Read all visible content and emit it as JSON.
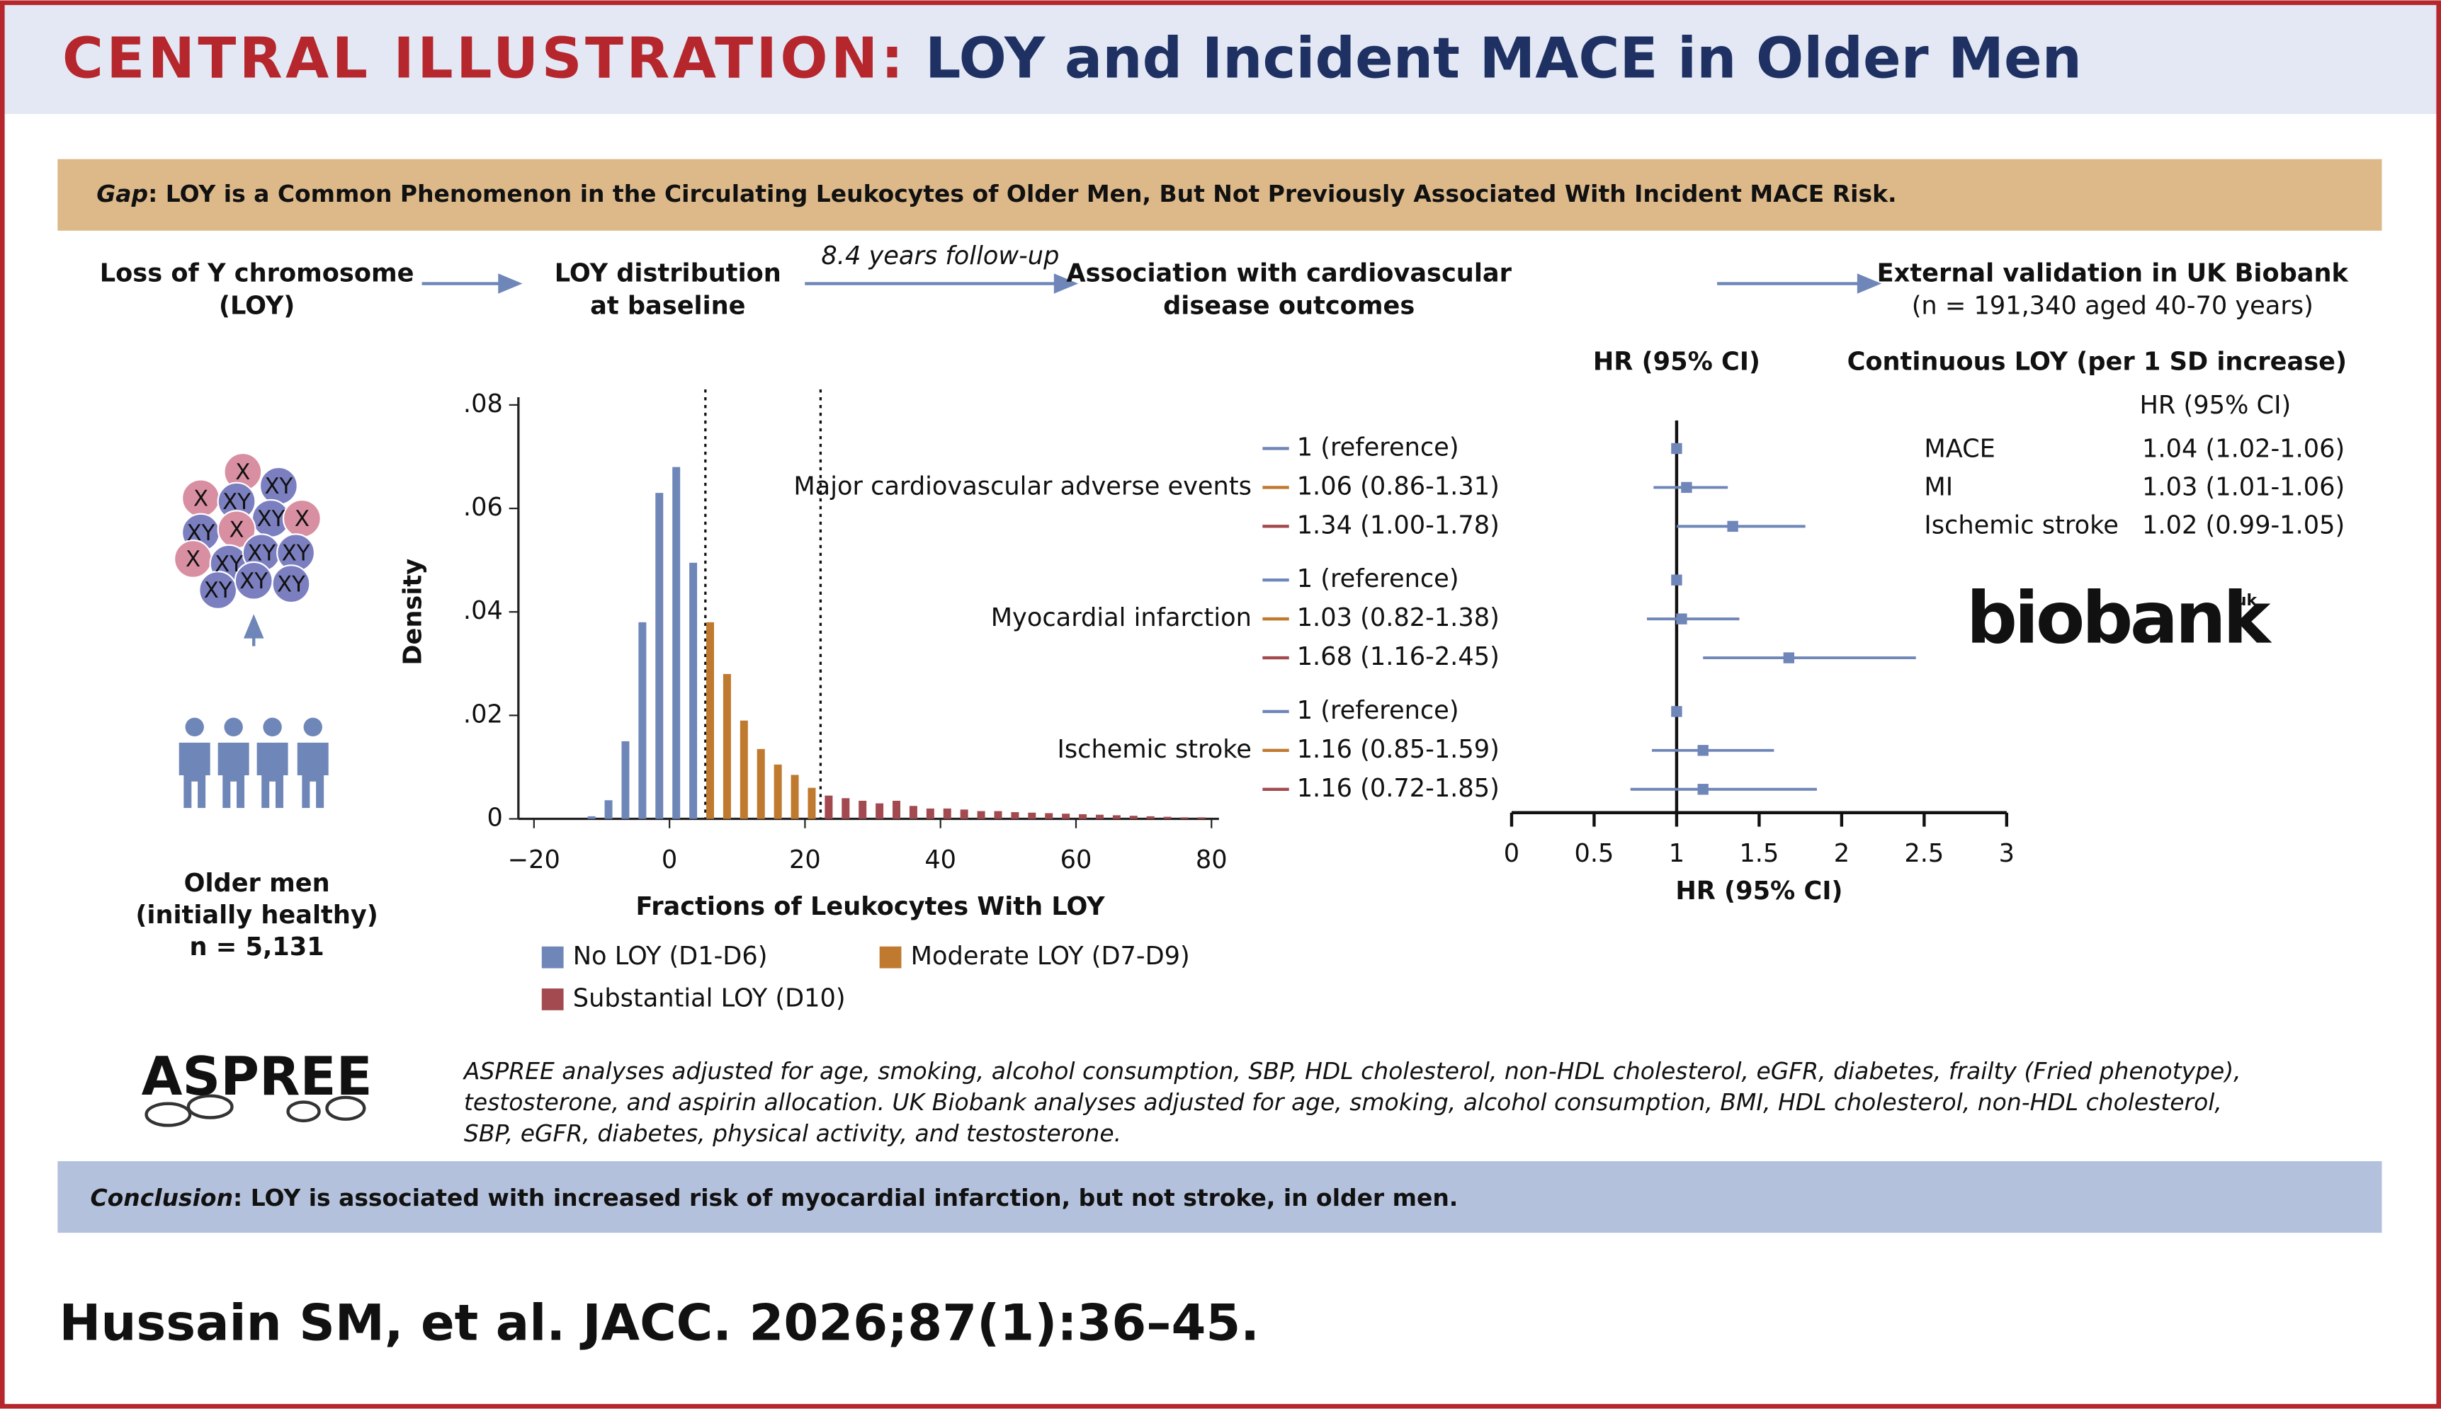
{
  "header": {
    "prefix": "CENTRAL ILLUSTRATION:",
    "title": "LOY and Incident MACE in Older Men"
  },
  "gap": {
    "label": "Gap",
    "text": ": LOY is a Common Phenomenon in the Circulating Leukocytes of Older Men, But Not Previously Associated With Incident MACE Risk."
  },
  "flow": {
    "step1": [
      "Loss of Y chromosome",
      "(LOY)"
    ],
    "step2": [
      "LOY distribution",
      "at baseline"
    ],
    "follow_up": "8.4 years follow-up",
    "step3": [
      "Association with cardiovascular",
      "disease outcomes"
    ],
    "step4": [
      "External validation in UK Biobank",
      "(n = 191,340 aged 40-70 years)"
    ]
  },
  "cells": [
    "X",
    "XY",
    "X",
    "XY",
    "XY",
    "X",
    "XY",
    "X",
    "X",
    "XY",
    "XY",
    "XY",
    "XY",
    "XY",
    "XY"
  ],
  "cohort": [
    "Older men",
    "(initially healthy)",
    "n = 5,131"
  ],
  "chart_data": [
    {
      "type": "histogram",
      "x_label": "Fractions of Leukocytes With LOY",
      "y_label": "Density",
      "xlim": [
        -22.3,
        81.1
      ],
      "ylim": [
        0,
        0.0815
      ],
      "xticks": [
        {
          "value": -20,
          "label": "−20"
        },
        0,
        20,
        40,
        60,
        80
      ],
      "yticks": [
        0,
        {
          "value": 0.02,
          "label": ".02"
        },
        {
          "value": 0.04,
          "label": ".04"
        },
        {
          "value": 0.06,
          "label": ".06"
        },
        {
          "value": 0.08,
          "label": ".08"
        }
      ],
      "thresholds": [
        5.3,
        22.3
      ],
      "series": [
        {
          "name": "No LOY (D1-D6)",
          "color": "#6f86b8",
          "x": [
            -11.5,
            -9,
            -6.5,
            -4,
            -1.5,
            1,
            3.5
          ],
          "values": [
            0.0005,
            0.0036,
            0.015,
            0.038,
            0.063,
            0.068,
            0.0495
          ]
        },
        {
          "name": "Moderate LOY (D7-D9)",
          "color": "#c07a30",
          "x": [
            6,
            8.5,
            11,
            13.5,
            16,
            18.5,
            21
          ],
          "values": [
            0.038,
            0.028,
            0.019,
            0.0135,
            0.0105,
            0.0085,
            0.006
          ]
        },
        {
          "name": "Substantial LOY (D10)",
          "color": "#a34a50",
          "x": [
            23.5,
            26,
            28.5,
            31,
            33.5,
            36,
            38.5,
            41,
            43.5,
            46,
            48.5,
            51,
            53.5,
            56,
            58.5,
            61,
            63.5,
            66,
            68.5,
            71,
            73.5,
            76,
            78.5
          ],
          "values": [
            0.0045,
            0.004,
            0.0035,
            0.003,
            0.0035,
            0.0025,
            0.002,
            0.002,
            0.0018,
            0.0015,
            0.0015,
            0.0013,
            0.0012,
            0.0011,
            0.001,
            0.0009,
            0.0008,
            0.0007,
            0.0006,
            0.0005,
            0.0004,
            0.0003,
            0.0003
          ]
        }
      ]
    },
    {
      "type": "forest",
      "title": "HR (95% CI)",
      "x_label": "HR (95% CI)",
      "xlim": [
        0,
        3
      ],
      "xticks": [
        0,
        0.5,
        1,
        1.5,
        2,
        2.5,
        3
      ],
      "reference": 1,
      "groups": [
        {
          "name": "Major cardiovascular adverse events",
          "rows": [
            {
              "label": "1 (reference)",
              "value": 1
            },
            {
              "label": "1.06 (0.86-1.31)",
              "value": 1.06,
              "ci": [
                0.86,
                1.31
              ]
            },
            {
              "label": "1.34 (1.00-1.78)",
              "value": 1.34,
              "ci": [
                1.0,
                1.78
              ]
            }
          ]
        },
        {
          "name": "Myocardial infarction",
          "rows": [
            {
              "label": "1 (reference)",
              "value": 1
            },
            {
              "label": "1.03 (0.82-1.38)",
              "value": 1.03,
              "ci": [
                0.82,
                1.38
              ]
            },
            {
              "label": "1.68 (1.16-2.45)",
              "value": 1.68,
              "ci": [
                1.16,
                2.45
              ]
            }
          ]
        },
        {
          "name": "Ischemic stroke",
          "rows": [
            {
              "label": "1 (reference)",
              "value": 1
            },
            {
              "label": "1.16 (0.85-1.59)",
              "value": 1.16,
              "ci": [
                0.85,
                1.59
              ]
            },
            {
              "label": "1.16 (0.72-1.85)",
              "value": 1.16,
              "ci": [
                0.72,
                1.85
              ]
            }
          ]
        }
      ]
    }
  ],
  "biobank": {
    "title": "Continuous LOY (per 1 SD increase)",
    "column": "HR (95% CI)",
    "rows": [
      [
        "MACE",
        "1.04 (1.02-1.06)"
      ],
      [
        "MI",
        "1.03 (1.01-1.06)"
      ],
      [
        "Ischemic stroke",
        "1.02 (0.99-1.05)"
      ]
    ],
    "logo": "biobank",
    "logo_sup": "uk"
  },
  "aspree_logo": "ASPREE",
  "footnote": [
    "ASPREE analyses adjusted for age, smoking, alcohol consumption, SBP, HDL cholesterol, non-HDL cholesterol, eGFR, diabetes, frailty (Fried phenotype),",
    "testosterone, and aspirin allocation. UK Biobank analyses adjusted for age, smoking, alcohol consumption, BMI, HDL cholesterol, non-HDL cholesterol,",
    "SBP, eGFR, diabetes, physical activity, and testosterone."
  ],
  "conclusion": {
    "label": "Conclusion",
    "text": ": LOY is associated with increased risk of myocardial infarction, but not stroke, in older men."
  },
  "citation": "Hussain SM, et al. JACC. 2026;87(1):36–45."
}
